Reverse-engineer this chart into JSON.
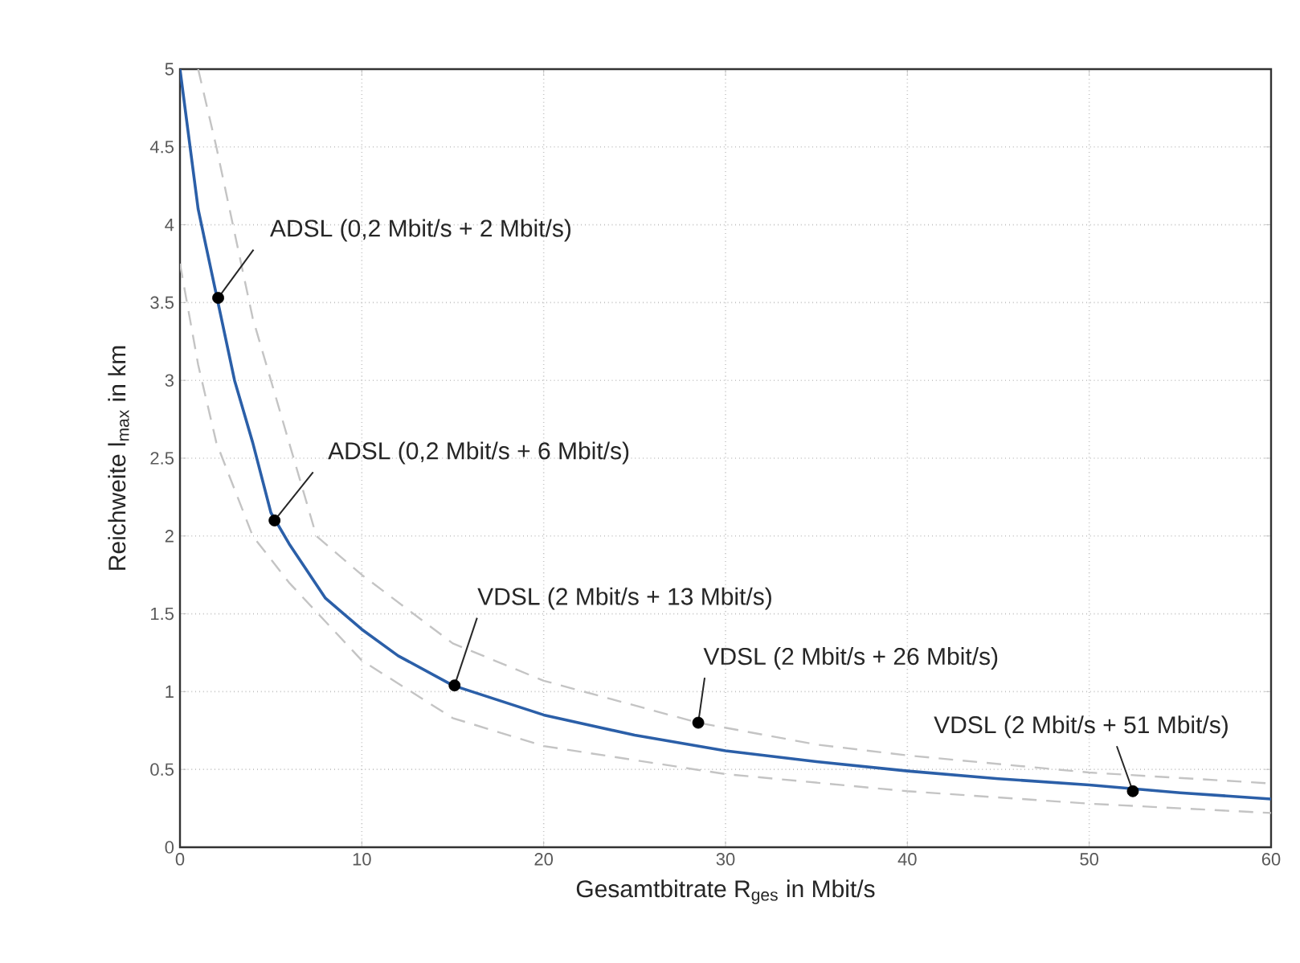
{
  "chart_data": {
    "type": "line",
    "xlabel": "Gesamtbitrate R$_{ges}$ in Mbit/s",
    "ylabel": "Reichweite  l$_{max}$ in km",
    "xlim": [
      0,
      60
    ],
    "ylim": [
      0,
      5
    ],
    "xticks": [
      0,
      10,
      20,
      30,
      40,
      50,
      60
    ],
    "yticks": [
      0,
      0.5,
      1,
      1.5,
      2,
      2.5,
      3,
      3.5,
      4,
      4.5,
      5
    ],
    "grid": true,
    "series": [
      {
        "color": "#2b5fa8",
        "line_style": "solid",
        "x": [
          0,
          1,
          2,
          3,
          4,
          5,
          6,
          8,
          10,
          12,
          15,
          20,
          25,
          30,
          35,
          40,
          45,
          50,
          55,
          60
        ],
        "values": [
          5.0,
          4.1,
          3.55,
          3.0,
          2.6,
          2.15,
          1.95,
          1.6,
          1.4,
          1.23,
          1.04,
          0.85,
          0.72,
          0.62,
          0.55,
          0.49,
          0.44,
          0.4,
          0.35,
          0.31
        ]
      },
      {
        "color": "#c4c4c4",
        "line_style": "dashed",
        "x": [
          1,
          2,
          4,
          7.5,
          10,
          15,
          20,
          28.5,
          35,
          40,
          50,
          60
        ],
        "values": [
          5.0,
          4.5,
          3.4,
          2.0,
          1.75,
          1.31,
          1.07,
          0.8,
          0.66,
          0.59,
          0.48,
          0.41
        ]
      },
      {
        "color": "#c4c4c4",
        "line_style": "dashed",
        "x": [
          0,
          1,
          2,
          4,
          6,
          8,
          10,
          15,
          20,
          30,
          40,
          50,
          60
        ],
        "values": [
          3.75,
          3.1,
          2.6,
          2.0,
          1.7,
          1.45,
          1.2,
          0.83,
          0.65,
          0.47,
          0.36,
          0.28,
          0.22
        ]
      },
      {
        "type": "scatter",
        "color": "#000000",
        "marker": "circle",
        "x": [
          2.1,
          5.2,
          15.1,
          28.5,
          52.4
        ],
        "values": [
          3.53,
          2.1,
          1.04,
          0.8,
          0.36
        ]
      }
    ],
    "annotations": [
      {
        "text": "ADSL (0,2 Mbit/s + 2 Mbit/s)",
        "x": 2.1,
        "y": 3.53
      },
      {
        "text": "ADSL (0,2 Mbit/s + 6 Mbit/s)",
        "x": 5.2,
        "y": 2.1
      },
      {
        "text": "VDSL (2 Mbit/s + 13 Mbit/s)",
        "x": 15.1,
        "y": 1.04
      },
      {
        "text": "VDSL (2 Mbit/s + 26 Mbit/s)",
        "x": 28.5,
        "y": 0.8
      },
      {
        "text": "VDSL (2 Mbit/s + 51 Mbit/s)",
        "x": 52.4,
        "y": 0.36
      }
    ]
  }
}
